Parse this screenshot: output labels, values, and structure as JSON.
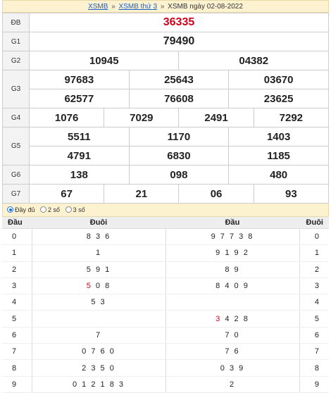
{
  "breadcrumb": {
    "home": "XSMB",
    "weekday": "XSMB thứ 3",
    "current": "XSMB ngày 02-08-2022",
    "separator": "»"
  },
  "prizes": [
    {
      "label": "ĐB",
      "numbers": [
        "36335"
      ]
    },
    {
      "label": "G1",
      "numbers": [
        "79490"
      ]
    },
    {
      "label": "G2",
      "numbers": [
        "10945",
        "04382"
      ]
    },
    {
      "label": "G3",
      "numbers": [
        "97683",
        "25643",
        "03670",
        "62577",
        "76608",
        "23625"
      ]
    },
    {
      "label": "G4",
      "numbers": [
        "1076",
        "7029",
        "2491",
        "7292"
      ]
    },
    {
      "label": "G5",
      "numbers": [
        "5511",
        "1170",
        "1403",
        "4791",
        "6830",
        "1185"
      ]
    },
    {
      "label": "G6",
      "numbers": [
        "138",
        "098",
        "480"
      ]
    },
    {
      "label": "G7",
      "numbers": [
        "67",
        "21",
        "06",
        "93"
      ]
    }
  ],
  "display_options": {
    "selected": "Đầy đủ",
    "items": [
      "Đầy đủ",
      "2 số",
      "3 số"
    ]
  },
  "loto": {
    "headers": {
      "dau": "Đầu",
      "duoi": "Đuôi",
      "dau2": "Đầu",
      "duoi2": "Đuôi"
    },
    "rows": [
      {
        "dau": "0",
        "duoi_hl": "",
        "duoi": "8 3 6",
        "dau_list_hl": "",
        "dau_list": "9 7 7 3 8",
        "duoi2": "0"
      },
      {
        "dau": "1",
        "duoi_hl": "",
        "duoi": "1",
        "dau_list_hl": "",
        "dau_list": "9 1 9 2",
        "duoi2": "1"
      },
      {
        "dau": "2",
        "duoi_hl": "",
        "duoi": "5 9 1",
        "dau_list_hl": "",
        "dau_list": "8 9",
        "duoi2": "2"
      },
      {
        "dau": "3",
        "duoi_hl": "5",
        "duoi": " 0 8",
        "dau_list_hl": "",
        "dau_list": "8 4 0 9",
        "duoi2": "3"
      },
      {
        "dau": "4",
        "duoi_hl": "",
        "duoi": "5 3",
        "dau_list_hl": "",
        "dau_list": "",
        "duoi2": "4"
      },
      {
        "dau": "5",
        "duoi_hl": "",
        "duoi": "",
        "dau_list_hl": "3",
        "dau_list": " 4 2 8",
        "duoi2": "5"
      },
      {
        "dau": "6",
        "duoi_hl": "",
        "duoi": "7",
        "dau_list_hl": "",
        "dau_list": "7 0",
        "duoi2": "6"
      },
      {
        "dau": "7",
        "duoi_hl": "",
        "duoi": "0 7 6 0",
        "dau_list_hl": "",
        "dau_list": "7 6",
        "duoi2": "7"
      },
      {
        "dau": "8",
        "duoi_hl": "",
        "duoi": "2 3 5 0",
        "dau_list_hl": "",
        "dau_list": "0 3 9",
        "duoi2": "8"
      },
      {
        "dau": "9",
        "duoi_hl": "",
        "duoi": "0 1 2 1 8 3",
        "dau_list_hl": "",
        "dau_list": "2",
        "duoi2": "9"
      }
    ]
  },
  "colors": {
    "special": "#d0021b",
    "header_bg": "#fdf2d0",
    "link": "#1a5fd0"
  }
}
